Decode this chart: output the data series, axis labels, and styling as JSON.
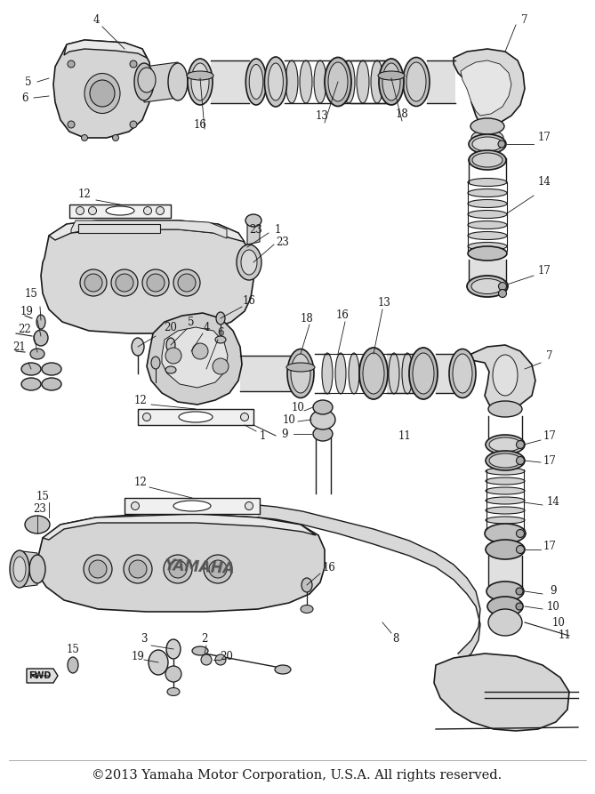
{
  "copyright_text": "©2013 Yamaha Motor Corporation, U.S.A. All rights reserved.",
  "background_color": "#ffffff",
  "line_color": "#1a1a1a",
  "fig_width": 6.69,
  "fig_height": 8.93,
  "dpi": 100,
  "copyright_fontsize": 10.5,
  "label_fontsize": 8.5
}
